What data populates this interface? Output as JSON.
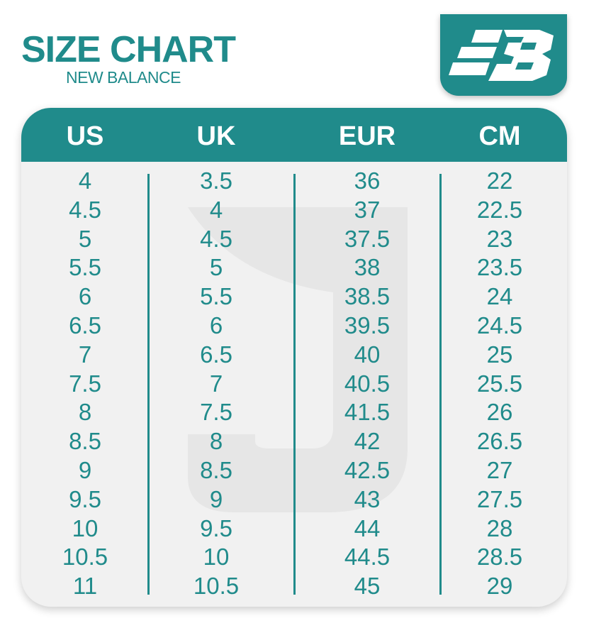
{
  "header": {
    "title": "SIZE CHART",
    "subtitle": "NEW BALANCE",
    "logo_text": "NB",
    "brand_color": "#208b8b"
  },
  "table": {
    "columns": [
      "US",
      "UK",
      "EUR",
      "CM"
    ],
    "rows": [
      [
        "4",
        "3.5",
        "36",
        "22"
      ],
      [
        "4.5",
        "4",
        "37",
        "22.5"
      ],
      [
        "5",
        "4.5",
        "37.5",
        "23"
      ],
      [
        "5.5",
        "5",
        "38",
        "23.5"
      ],
      [
        "6",
        "5.5",
        "38.5",
        "24"
      ],
      [
        "6.5",
        "6",
        "39.5",
        "24.5"
      ],
      [
        "7",
        "6.5",
        "40",
        "25"
      ],
      [
        "7.5",
        "7",
        "40.5",
        "25.5"
      ],
      [
        "8",
        "7.5",
        "41.5",
        "26"
      ],
      [
        "8.5",
        "8",
        "42",
        "26.5"
      ],
      [
        "9",
        "8.5",
        "42.5",
        "27"
      ],
      [
        "9.5",
        "9",
        "43",
        "27.5"
      ],
      [
        "10",
        "9.5",
        "44",
        "28"
      ],
      [
        "10.5",
        "10",
        "44.5",
        "28.5"
      ],
      [
        "11",
        "10.5",
        "45",
        "29"
      ]
    ]
  }
}
